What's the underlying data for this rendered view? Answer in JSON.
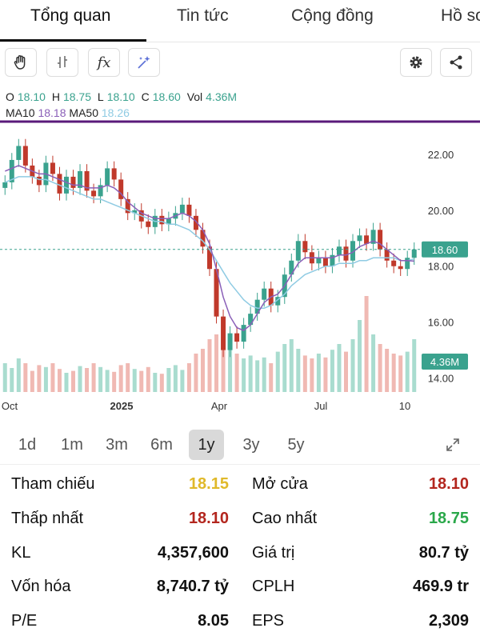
{
  "tabs": [
    "Tổng quan",
    "Tin tức",
    "Cộng đồng",
    "Hồ sơ"
  ],
  "toolbar": {
    "icons": [
      "hand-icon",
      "candlestick-icon",
      "function-icon",
      "magic-icon",
      "settings-icon",
      "share-icon"
    ],
    "function_glyph": "fx"
  },
  "ohlc": {
    "o_label": "O",
    "o": "18.10",
    "h_label": "H",
    "h": "18.75",
    "l_label": "L",
    "l": "18.10",
    "c_label": "C",
    "c": "18.60",
    "vol_label": "Vol",
    "vol": "4.36M"
  },
  "ma": {
    "ma10_label": "MA10",
    "ma10": "18.18",
    "ma50_label": "MA50",
    "ma50": "18.26"
  },
  "colors": {
    "up": "#3aa28e",
    "down": "#c0392b",
    "ma10": "#8a5fb8",
    "ma50": "#8fcbe3",
    "annotation": "#5a1a7a",
    "current_price": "#3aa28e"
  },
  "chart_data": {
    "type": "candlestick",
    "y_ticks": [
      "22.00",
      "20.00",
      "18.00",
      "16.00",
      "14.00"
    ],
    "y_range": [
      13.5,
      23.0
    ],
    "x_ticks": [
      "Oct",
      "2025",
      "Apr",
      "Jul",
      "10"
    ],
    "current_price_label": "18.60",
    "volume_label": "4.36M",
    "price_path": [
      21.0,
      21.8,
      22.3,
      21.6,
      21.2,
      20.9,
      21.7,
      21.3,
      20.6,
      21.2,
      20.8,
      21.4,
      20.7,
      20.5,
      20.9,
      21.5,
      21.1,
      20.4,
      19.9,
      20.0,
      19.6,
      19.4,
      19.8,
      19.5,
      19.7,
      19.9,
      20.2,
      19.8,
      19.3,
      18.7,
      17.9,
      16.2,
      15.0,
      15.6,
      15.3,
      15.9,
      16.3,
      16.8,
      17.2,
      16.6,
      16.9,
      17.7,
      18.2,
      18.9,
      18.5,
      18.1,
      18.3,
      18.0,
      18.4,
      18.7,
      18.2,
      18.9,
      19.1,
      18.8,
      19.3,
      18.6,
      18.2,
      18.0,
      17.9,
      18.3,
      18.6
    ],
    "ma10_path": [
      21.4,
      21.5,
      21.6,
      21.5,
      21.4,
      21.3,
      21.3,
      21.2,
      21.1,
      21.0,
      20.9,
      20.9,
      20.8,
      20.8,
      20.8,
      20.9,
      20.8,
      20.6,
      20.3,
      20.1,
      19.9,
      19.8,
      19.7,
      19.7,
      19.7,
      19.8,
      19.9,
      19.8,
      19.6,
      19.3,
      18.8,
      17.9,
      16.9,
      16.2,
      15.8,
      15.7,
      15.9,
      16.3,
      16.7,
      16.9,
      17.0,
      17.3,
      17.7,
      18.1,
      18.3,
      18.3,
      18.3,
      18.3,
      18.3,
      18.4,
      18.4,
      18.5,
      18.7,
      18.8,
      18.9,
      18.8,
      18.6,
      18.4,
      18.2,
      18.2,
      18.18
    ],
    "ma50_path": [
      21.0,
      21.1,
      21.2,
      21.2,
      21.2,
      21.1,
      21.1,
      21.0,
      20.9,
      20.8,
      20.7,
      20.6,
      20.5,
      20.4,
      20.4,
      20.3,
      20.2,
      20.1,
      20.0,
      19.9,
      19.8,
      19.7,
      19.6,
      19.6,
      19.5,
      19.5,
      19.4,
      19.3,
      19.1,
      18.9,
      18.6,
      18.2,
      17.8,
      17.4,
      17.1,
      16.8,
      16.6,
      16.5,
      16.5,
      16.6,
      16.8,
      17.0,
      17.3,
      17.5,
      17.7,
      17.8,
      17.9,
      18.0,
      18.0,
      18.1,
      18.1,
      18.1,
      18.2,
      18.2,
      18.3,
      18.3,
      18.3,
      18.3,
      18.2,
      18.2,
      18.26
    ],
    "volumes": [
      0.3,
      0.25,
      0.35,
      0.3,
      0.22,
      0.28,
      0.26,
      0.3,
      0.24,
      0.2,
      0.22,
      0.27,
      0.25,
      0.3,
      0.26,
      0.23,
      0.21,
      0.28,
      0.3,
      0.24,
      0.22,
      0.26,
      0.2,
      0.19,
      0.25,
      0.28,
      0.23,
      0.3,
      0.4,
      0.45,
      0.55,
      0.6,
      0.5,
      0.45,
      0.4,
      0.35,
      0.38,
      0.33,
      0.36,
      0.3,
      0.42,
      0.5,
      0.55,
      0.45,
      0.38,
      0.35,
      0.4,
      0.36,
      0.44,
      0.5,
      0.42,
      0.55,
      0.75,
      1.0,
      0.6,
      0.5,
      0.45,
      0.4,
      0.38,
      0.42,
      0.55
    ]
  },
  "ranges": {
    "options": [
      "1d",
      "1m",
      "3m",
      "6m",
      "1y",
      "3y",
      "5y"
    ],
    "selected": "1y"
  },
  "stats": {
    "tham_chieu_label": "Tham chiếu",
    "tham_chieu": "18.15",
    "mo_cua_label": "Mở cửa",
    "mo_cua": "18.10",
    "thap_nhat_label": "Thấp nhất",
    "thap_nhat": "18.10",
    "cao_nhat_label": "Cao nhất",
    "cao_nhat": "18.75",
    "kl_label": "KL",
    "kl": "4,357,600",
    "gia_tri_label": "Giá trị",
    "gia_tri": "80.7 tỷ",
    "von_hoa_label": "Vốn hóa",
    "von_hoa": "8,740.7 tỷ",
    "cplh_label": "CPLH",
    "cplh": "469.9 tr",
    "pe_label": "P/E",
    "pe": "8.05",
    "eps_label": "EPS",
    "eps": "2,309"
  }
}
